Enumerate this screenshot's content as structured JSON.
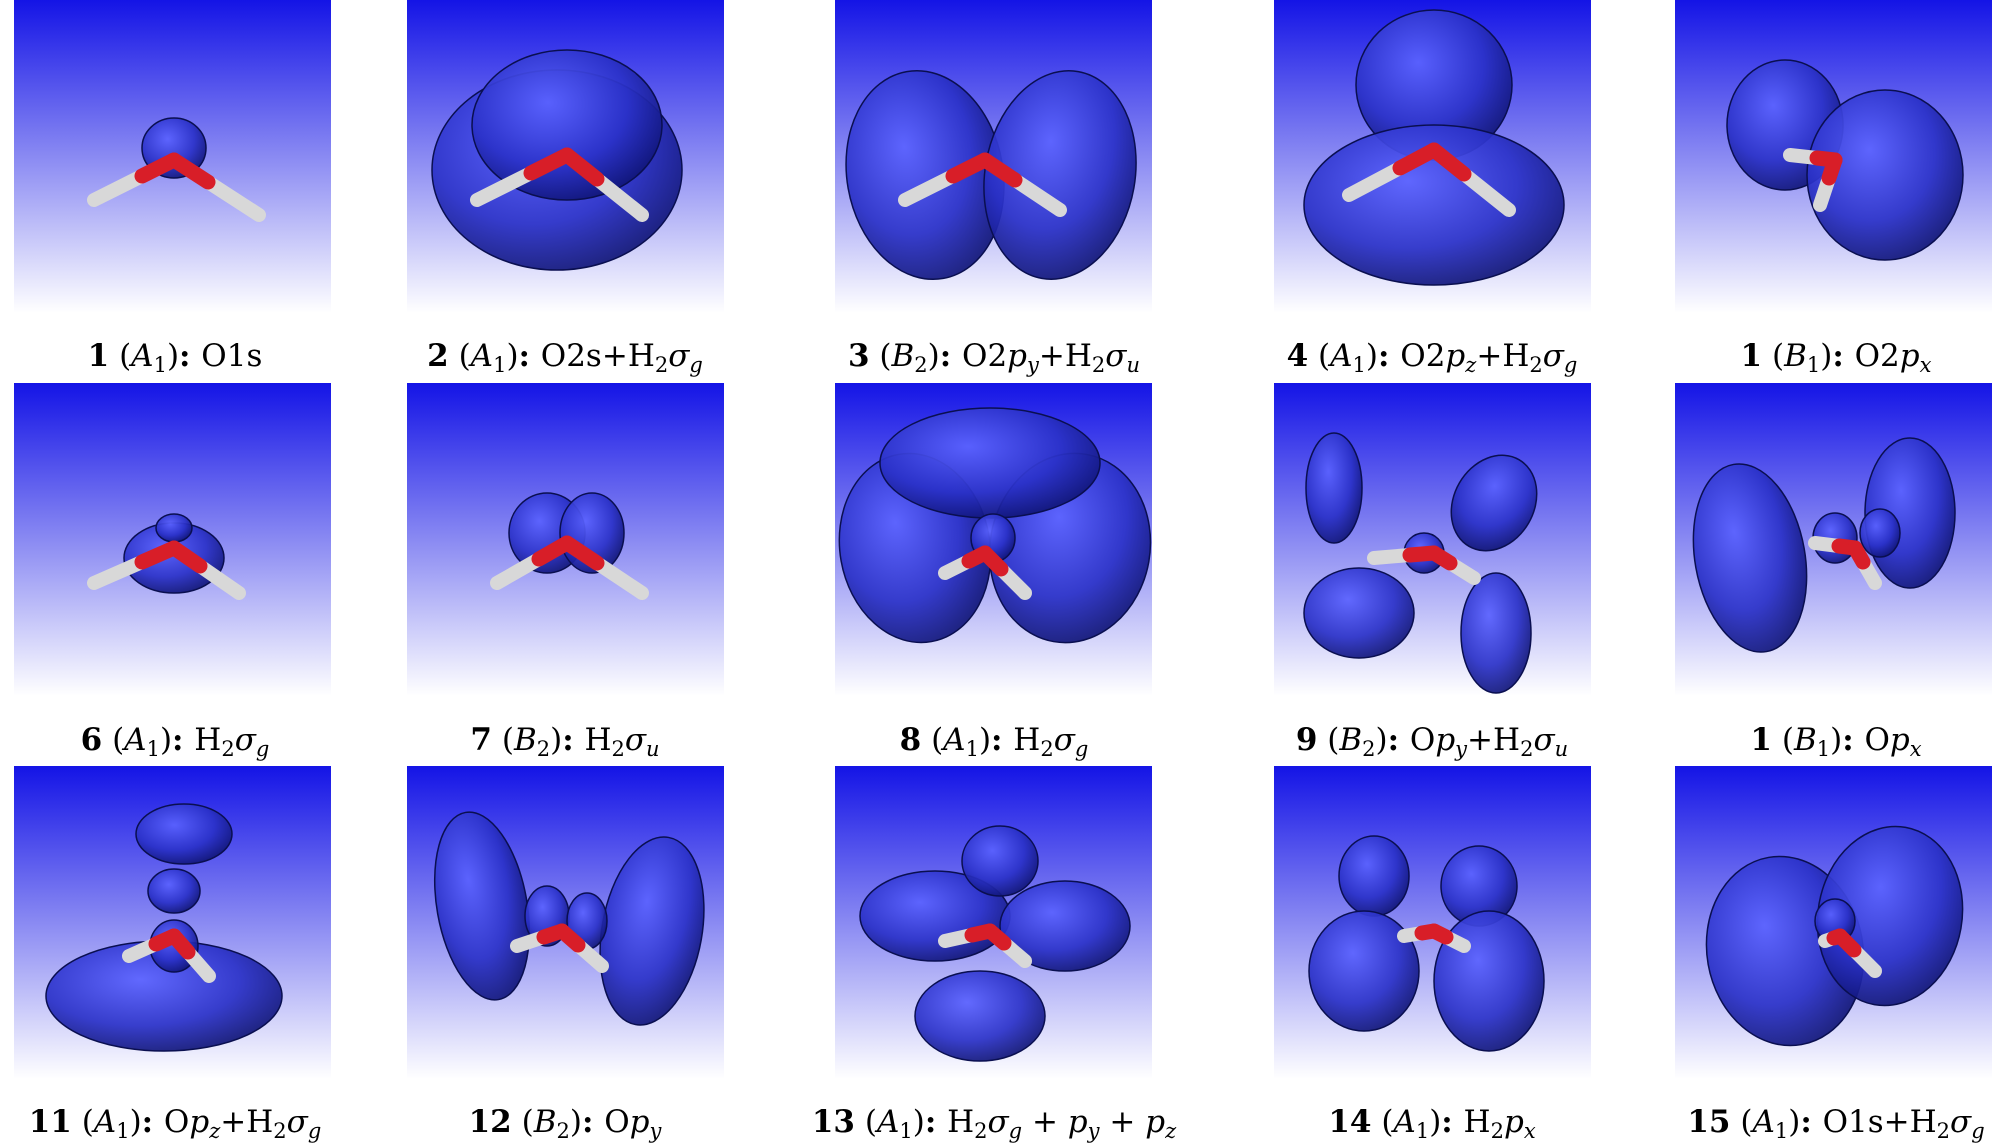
{
  "figure": {
    "panels": [
      {
        "num": "1",
        "sym": "A",
        "sub": "1",
        "label": [
          {
            "t": "O1s"
          }
        ]
      },
      {
        "num": "2",
        "sym": "A",
        "sub": "1",
        "label": [
          {
            "t": "O2s+H"
          },
          {
            "sub": "2"
          },
          {
            "it": "σ"
          },
          {
            "subit": "g"
          }
        ]
      },
      {
        "num": "3",
        "sym": "B",
        "sub": "2",
        "label": [
          {
            "t": "O2"
          },
          {
            "it": "p"
          },
          {
            "subit": "y"
          },
          {
            "t": "+H"
          },
          {
            "sub": "2"
          },
          {
            "it": "σ"
          },
          {
            "subit": "u"
          }
        ]
      },
      {
        "num": "4",
        "sym": "A",
        "sub": "1",
        "label": [
          {
            "t": "O2"
          },
          {
            "it": "p"
          },
          {
            "subit": "z"
          },
          {
            "t": "+H"
          },
          {
            "sub": "2"
          },
          {
            "it": "σ"
          },
          {
            "subit": "g"
          }
        ]
      },
      {
        "num": "1",
        "sym": "B",
        "sub": "1",
        "label": [
          {
            "t": "O2"
          },
          {
            "it": "p"
          },
          {
            "subit": "x"
          }
        ]
      },
      {
        "num": "6",
        "sym": "A",
        "sub": "1",
        "label": [
          {
            "t": "H"
          },
          {
            "sub": "2"
          },
          {
            "it": "σ"
          },
          {
            "subit": "g"
          }
        ]
      },
      {
        "num": "7",
        "sym": "B",
        "sub": "2",
        "label": [
          {
            "t": "H"
          },
          {
            "sub": "2"
          },
          {
            "it": "σ"
          },
          {
            "subit": "u"
          }
        ]
      },
      {
        "num": "8",
        "sym": "A",
        "sub": "1",
        "label": [
          {
            "t": "H"
          },
          {
            "sub": "2"
          },
          {
            "it": "σ"
          },
          {
            "subit": "g"
          }
        ]
      },
      {
        "num": "9",
        "sym": "B",
        "sub": "2",
        "label": [
          {
            "t": "O"
          },
          {
            "it": "p"
          },
          {
            "subit": "y"
          },
          {
            "t": "+H"
          },
          {
            "sub": "2"
          },
          {
            "it": "σ"
          },
          {
            "subit": "u"
          }
        ]
      },
      {
        "num": "1",
        "sym": "B",
        "sub": "1",
        "label": [
          {
            "t": "O"
          },
          {
            "it": "p"
          },
          {
            "subit": "x"
          }
        ]
      },
      {
        "num": "11",
        "sym": "A",
        "sub": "1",
        "label": [
          {
            "t": "O"
          },
          {
            "it": "p"
          },
          {
            "subit": "z"
          },
          {
            "t": "+H"
          },
          {
            "sub": "2"
          },
          {
            "it": "σ"
          },
          {
            "subit": "g"
          }
        ]
      },
      {
        "num": "12",
        "sym": "B",
        "sub": "2",
        "label": [
          {
            "t": "O"
          },
          {
            "it": "p"
          },
          {
            "subit": "y"
          }
        ]
      },
      {
        "num": "13",
        "sym": "A",
        "sub": "1",
        "label": [
          {
            "t": "H"
          },
          {
            "sub": "2"
          },
          {
            "it": "σ"
          },
          {
            "subit": "g"
          },
          {
            "t": " + "
          },
          {
            "it": "p"
          },
          {
            "subit": "y"
          },
          {
            "t": " + "
          },
          {
            "it": "p"
          },
          {
            "subit": "z"
          }
        ]
      },
      {
        "num": "14",
        "sym": "A",
        "sub": "1",
        "label": [
          {
            "t": "H"
          },
          {
            "sub": "2"
          },
          {
            "it": "p"
          },
          {
            "subit": "x"
          }
        ]
      },
      {
        "num": "15",
        "sym": "A",
        "sub": "1",
        "label": [
          {
            "t": "O1s+H"
          },
          {
            "sub": "2"
          },
          {
            "it": "σ"
          },
          {
            "subit": "g"
          }
        ]
      }
    ],
    "colors": {
      "orbital": "#2a31c8",
      "orbital_dark": "#0d1270",
      "bg_top": "#1414e6",
      "bg_bottom": "#ffffff",
      "oxygen": "#d81e28",
      "hydrogen": "#d8d8d8"
    }
  }
}
